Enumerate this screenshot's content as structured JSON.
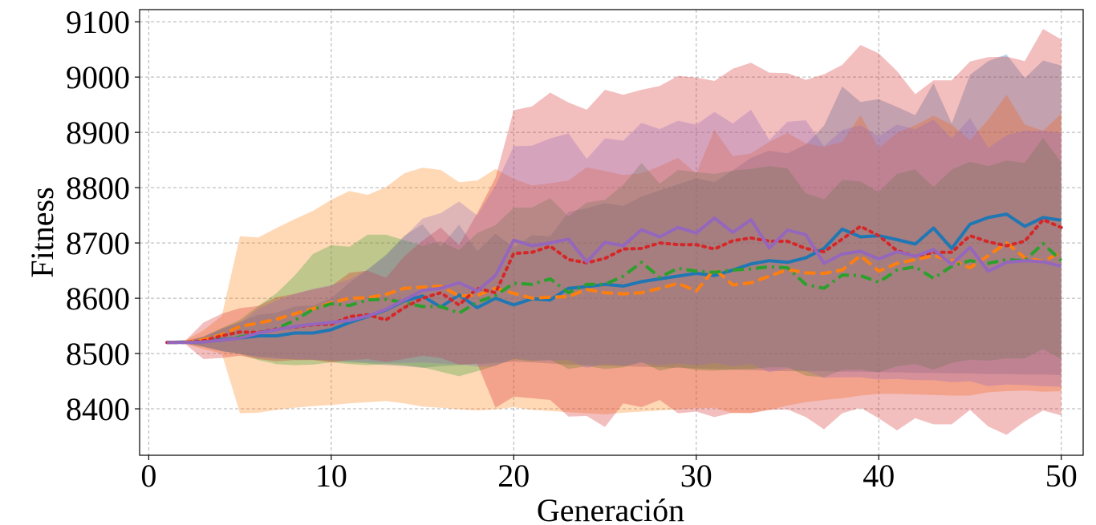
{
  "chart_data": {
    "type": "line",
    "title": "",
    "xlabel": "Generación",
    "ylabel": "Fitness",
    "xlim": [
      -0.5,
      51.2
    ],
    "ylim": [
      8316,
      9122
    ],
    "grid": true,
    "x_ticks": [
      0,
      10,
      20,
      30,
      40,
      50
    ],
    "y_ticks": [
      8400,
      8500,
      8600,
      8700,
      8800,
      8900,
      9000,
      9100
    ],
    "x": [
      1,
      2,
      3,
      4,
      5,
      6,
      7,
      8,
      9,
      10,
      11,
      12,
      13,
      14,
      15,
      16,
      17,
      18,
      19,
      20,
      21,
      22,
      23,
      24,
      25,
      26,
      27,
      28,
      29,
      30,
      31,
      32,
      33,
      34,
      35,
      36,
      37,
      38,
      39,
      40,
      41,
      42,
      43,
      44,
      45,
      46,
      47,
      48,
      49,
      50
    ],
    "series": [
      {
        "color": "#1f77b4",
        "style": "solid",
        "values": [
          8520,
          8521,
          8522,
          8525,
          8528,
          8532,
          8532,
          8537,
          8537,
          8543,
          8556,
          8567,
          8579,
          8595,
          8604,
          8584,
          8606,
          8583,
          8600,
          8588,
          8599,
          8597,
          8618,
          8621,
          8625,
          8622,
          8630,
          8635,
          8640,
          8645,
          8641,
          8651,
          8662,
          8668,
          8665,
          8673,
          8690,
          8725,
          8711,
          8713,
          8706,
          8698,
          8727,
          8690,
          8734,
          8746,
          8752,
          8730,
          8746,
          8741
        ],
        "band_lower": [
          8520,
          8519,
          8513,
          8505,
          8499,
          8494,
          8492,
          8489,
          8489,
          8486,
          8484,
          8482,
          8479,
          8477,
          8474,
          8477,
          8479,
          8481,
          8483,
          8485,
          8484,
          8482,
          8480,
          8479,
          8478,
          8477,
          8476,
          8475,
          8474,
          8473,
          8472,
          8471,
          8470,
          8469,
          8468,
          8468,
          8468,
          8467,
          8467,
          8466,
          8466,
          8465,
          8465,
          8464,
          8464,
          8463,
          8463,
          8462,
          8462,
          8461
        ],
        "band_upper": [
          8520,
          8523,
          8531,
          8545,
          8557,
          8570,
          8574,
          8585,
          8587,
          8600,
          8628,
          8652,
          8679,
          8713,
          8734,
          8693,
          8733,
          8685,
          8717,
          8691,
          8714,
          8712,
          8756,
          8763,
          8772,
          8767,
          8784,
          8795,
          8806,
          8817,
          8810,
          8831,
          8854,
          8867,
          8862,
          8878,
          8912,
          8983,
          8955,
          8960,
          8946,
          8931,
          8989,
          8916,
          9004,
          9029,
          9041,
          8998,
          9030,
          9021
        ]
      },
      {
        "color": "#ff7f0e",
        "style": "dashed",
        "values": [
          8520,
          8521,
          8525,
          8534,
          8549,
          8555,
          8562,
          8572,
          8581,
          8592,
          8600,
          8601,
          8607,
          8618,
          8620,
          8622,
          8604,
          8605,
          8618,
          8609,
          8600,
          8602,
          8603,
          8616,
          8610,
          8608,
          8610,
          8618,
          8627,
          8613,
          8653,
          8624,
          8628,
          8640,
          8652,
          8646,
          8645,
          8651,
          8677,
          8649,
          8663,
          8670,
          8677,
          8669,
          8655,
          8677,
          8700,
          8673,
          8667,
          8683
        ],
        "band_lower": [
          8520,
          8518,
          8508,
          8500,
          8392,
          8393,
          8398,
          8402,
          8405,
          8407,
          8410,
          8412,
          8414,
          8410,
          8404,
          8402,
          8399,
          8397,
          8399,
          8403,
          8398,
          8396,
          8394,
          8392,
          8390,
          8393,
          8395,
          8397,
          8399,
          8401,
          8402,
          8392,
          8393,
          8398,
          8406,
          8412,
          8416,
          8419,
          8424,
          8427,
          8427,
          8426,
          8425,
          8424,
          8424,
          8430,
          8432,
          8433,
          8431,
          8432
        ],
        "band_upper": [
          8520,
          8524,
          8542,
          8568,
          8712,
          8710,
          8727,
          8743,
          8758,
          8778,
          8794,
          8787,
          8801,
          8826,
          8836,
          8832,
          8810,
          8813,
          8834,
          8816,
          8804,
          8808,
          8813,
          8837,
          8830,
          8823,
          8826,
          8839,
          8854,
          8826,
          8905,
          8857,
          8862,
          8883,
          8899,
          8880,
          8874,
          8883,
          8931,
          8872,
          8899,
          8913,
          8930,
          8914,
          8886,
          8923,
          8968,
          8914,
          8903,
          8934
        ]
      },
      {
        "color": "#2ca02c",
        "style": "dashdot",
        "values": [
          8520,
          8520,
          8521,
          8524,
          8530,
          8537,
          8545,
          8560,
          8580,
          8590,
          8587,
          8597,
          8598,
          8592,
          8585,
          8585,
          8573,
          8593,
          8605,
          8627,
          8625,
          8635,
          8610,
          8625,
          8625,
          8640,
          8665,
          8638,
          8654,
          8649,
          8647,
          8651,
          8653,
          8657,
          8655,
          8625,
          8618,
          8642,
          8641,
          8629,
          8651,
          8657,
          8636,
          8658,
          8668,
          8663,
          8670,
          8668,
          8699,
          8668
        ],
        "band_lower": [
          8520,
          8518,
          8512,
          8504,
          8499,
          8488,
          8481,
          8479,
          8480,
          8484,
          8481,
          8479,
          8481,
          8479,
          8475,
          8467,
          8459,
          8468,
          8478,
          8490,
          8486,
          8489,
          8472,
          8477,
          8472,
          8475,
          8485,
          8469,
          8476,
          8470,
          8469,
          8471,
          8472,
          8475,
          8475,
          8460,
          8457,
          8470,
          8471,
          8466,
          8477,
          8481,
          8471,
          8483,
          8489,
          8487,
          8491,
          8491,
          8508,
          8490
        ],
        "band_upper": [
          8520,
          8522,
          8530,
          8546,
          8561,
          8586,
          8609,
          8641,
          8680,
          8696,
          8693,
          8715,
          8715,
          8705,
          8695,
          8703,
          8687,
          8718,
          8732,
          8764,
          8764,
          8781,
          8748,
          8773,
          8778,
          8805,
          8845,
          8807,
          8832,
          8828,
          8825,
          8831,
          8834,
          8839,
          8835,
          8790,
          8779,
          8814,
          8811,
          8792,
          8825,
          8833,
          8801,
          8833,
          8847,
          8839,
          8849,
          8845,
          8890,
          8846
        ]
      },
      {
        "color": "#d62728",
        "style": "dotted",
        "values": [
          8520,
          8520,
          8523,
          8532,
          8539,
          8538,
          8544,
          8548,
          8552,
          8553,
          8567,
          8570,
          8561,
          8583,
          8600,
          8610,
          8588,
          8618,
          8610,
          8681,
          8683,
          8694,
          8670,
          8664,
          8672,
          8689,
          8690,
          8700,
          8697,
          8697,
          8689,
          8704,
          8709,
          8703,
          8703,
          8690,
          8684,
          8707,
          8730,
          8713,
          8686,
          8676,
          8683,
          8683,
          8713,
          8702,
          8695,
          8703,
          8742,
          8728
        ],
        "band_lower": [
          8520,
          8517,
          8490,
          8492,
          8496,
          8490,
          8486,
          8488,
          8488,
          8484,
          8488,
          8490,
          8485,
          8490,
          8496,
          8492,
          8480,
          8482,
          8402,
          8422,
          8419,
          8416,
          8386,
          8387,
          8367,
          8410,
          8403,
          8416,
          8392,
          8395,
          8385,
          8393,
          8392,
          8398,
          8399,
          8385,
          8363,
          8392,
          8402,
          8383,
          8361,
          8383,
          8372,
          8372,
          8398,
          8368,
          8353,
          8377,
          8397,
          8388
        ],
        "band_upper": [
          8520,
          8523,
          8556,
          8572,
          8582,
          8586,
          8602,
          8608,
          8616,
          8622,
          8646,
          8650,
          8637,
          8676,
          8704,
          8728,
          8696,
          8754,
          8818,
          8940,
          8947,
          8972,
          8954,
          8941,
          8977,
          8968,
          8977,
          8984,
          9002,
          8999,
          8993,
          9015,
          9026,
          9008,
          9007,
          8995,
          9005,
          9022,
          9058,
          9043,
          9011,
          8969,
          8994,
          8994,
          9028,
          9036,
          9037,
          9029,
          9087,
          9068
        ]
      },
      {
        "color": "#9467bd",
        "style": "solid",
        "values": [
          8520,
          8520,
          8521,
          8524,
          8528,
          8537,
          8543,
          8549,
          8553,
          8556,
          8560,
          8568,
          8580,
          8597,
          8614,
          8618,
          8628,
          8613,
          8641,
          8705,
          8695,
          8700,
          8707,
          8666,
          8701,
          8695,
          8724,
          8711,
          8728,
          8718,
          8745,
          8719,
          8742,
          8691,
          8723,
          8715,
          8663,
          8680,
          8685,
          8671,
          8684,
          8676,
          8688,
          8661,
          8692,
          8649,
          8665,
          8668,
          8666,
          8658
        ],
        "band_lower": [
          8520,
          8518,
          8512,
          8504,
          8500,
          8493,
          8490,
          8490,
          8489,
          8488,
          8486,
          8484,
          8483,
          8483,
          8484,
          8482,
          8481,
          8476,
          8478,
          8491,
          8488,
          8487,
          8488,
          8474,
          8481,
          8478,
          8483,
          8479,
          8482,
          8479,
          8483,
          8477,
          8481,
          8466,
          8473,
          8468,
          8456,
          8457,
          8457,
          8453,
          8454,
          8452,
          8452,
          8448,
          8450,
          8441,
          8444,
          8443,
          8441,
          8440
        ],
        "band_upper": [
          8520,
          8522,
          8530,
          8544,
          8556,
          8581,
          8596,
          8608,
          8617,
          8624,
          8634,
          8652,
          8677,
          8711,
          8744,
          8754,
          8775,
          8750,
          8804,
          8875,
          8876,
          8889,
          8898,
          8852,
          8889,
          8885,
          8917,
          8906,
          8921,
          8914,
          8937,
          8916,
          8941,
          8886,
          8919,
          8922,
          8875,
          8904,
          8913,
          8893,
          8914,
          8906,
          8923,
          8889,
          8926,
          8872,
          8895,
          8903,
          8903,
          8899
        ]
      }
    ]
  }
}
